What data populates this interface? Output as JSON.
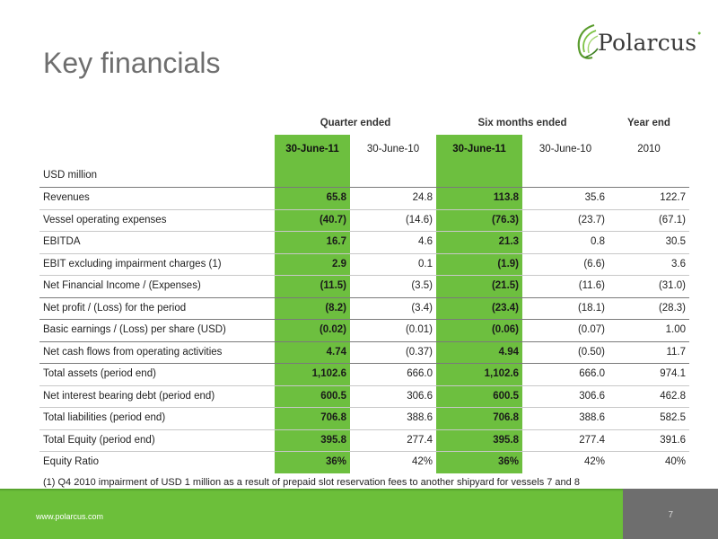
{
  "slide": {
    "title": "Key financials",
    "logo_text": "Polarcus",
    "logo_mark": "•",
    "footer_url": "www.polarcus.com",
    "page_number": "7",
    "accent_color": "#6dbf3f",
    "footer_dark": "#6e6e6e"
  },
  "table": {
    "groups": {
      "quarter": "Quarter ended",
      "six_months": "Six months ended",
      "year": "Year end"
    },
    "columns": [
      "30-June-11",
      "30-June-10",
      "30-June-11",
      "30-June-10",
      "2010"
    ],
    "unit_label": "USD million",
    "rows": [
      {
        "label": "Revenues",
        "values": [
          "65.8",
          "24.8",
          "113.8",
          "35.6",
          "122.7"
        ]
      },
      {
        "label": "Vessel operating expenses",
        "values": [
          "(40.7)",
          "(14.6)",
          "(76.3)",
          "(23.7)",
          "(67.1)"
        ]
      },
      {
        "label": "EBITDA",
        "values": [
          "16.7",
          "4.6",
          "21.3",
          "0.8",
          "30.5"
        ]
      },
      {
        "label": "EBIT excluding impairment charges (1)",
        "values": [
          "2.9",
          "0.1",
          "(1.9)",
          "(6.6)",
          "3.6"
        ]
      },
      {
        "label": "Net Financial Income / (Expenses)",
        "values": [
          "(11.5)",
          "(3.5)",
          "(21.5)",
          "(11.6)",
          "(31.0)"
        ]
      },
      {
        "label": "Net profit / (Loss) for the period",
        "values": [
          "(8.2)",
          "(3.4)",
          "(23.4)",
          "(18.1)",
          "(28.3)"
        ]
      },
      {
        "label": "Basic earnings / (Loss) per share (USD)",
        "values": [
          "(0.02)",
          "(0.01)",
          "(0.06)",
          "(0.07)",
          "1.00"
        ]
      },
      {
        "label": "Net cash flows from operating activities",
        "values": [
          "4.74",
          "(0.37)",
          "4.94",
          "(0.50)",
          "11.7"
        ]
      },
      {
        "label": "Total assets (period end)",
        "values": [
          "1,102.6",
          "666.0",
          "1,102.6",
          "666.0",
          "974.1"
        ]
      },
      {
        "label": "Net interest bearing debt (period end)",
        "values": [
          "600.5",
          "306.6",
          "600.5",
          "306.6",
          "462.8"
        ]
      },
      {
        "label": "Total liabilities (period end)",
        "values": [
          "706.8",
          "388.6",
          "706.8",
          "388.6",
          "582.5"
        ]
      },
      {
        "label": "Total Equity (period end)",
        "values": [
          "395.8",
          "277.4",
          "395.8",
          "277.4",
          "391.6"
        ]
      },
      {
        "label": "Equity Ratio",
        "values": [
          "36%",
          "42%",
          "36%",
          "42%",
          "40%"
        ]
      }
    ],
    "footnote": "(1) Q4 2010 impairment of USD 1 million as a result of prepaid slot reservation fees to another shipyard for vessels 7 and 8"
  }
}
